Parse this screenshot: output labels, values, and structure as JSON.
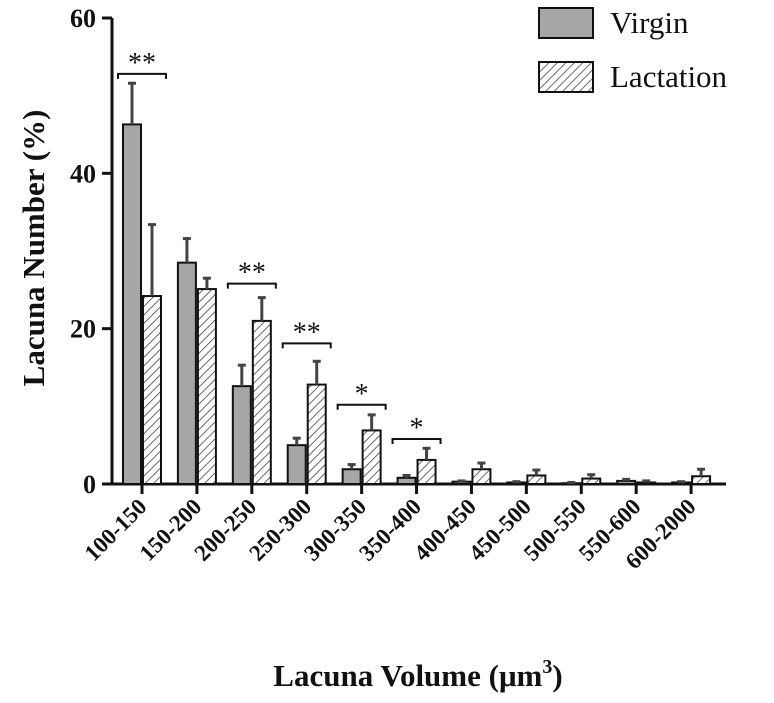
{
  "chart_data": {
    "type": "bar",
    "ylabel": "Lacuna Number (%)",
    "xlabel": "Lacuna Volume (μm",
    "xlabel_superscript": "3",
    "xlabel_close": ")",
    "ylim": [
      0,
      60
    ],
    "yticks": [
      "0",
      "20",
      "40",
      "60"
    ],
    "categories": [
      "100-150",
      "150-200",
      "200-250",
      "250-300",
      "300-350",
      "350-400",
      "400-450",
      "450-500",
      "500-550",
      "550-600",
      "600-2000"
    ],
    "series": [
      {
        "name": "Virgin",
        "pattern": "solid",
        "color": "#a6a6a6",
        "values": [
          46.3,
          28.5,
          12.6,
          5.0,
          1.9,
          0.8,
          0.3,
          0.2,
          0.1,
          0.4,
          0.2
        ],
        "errors": [
          5.3,
          3.1,
          2.7,
          0.9,
          0.6,
          0.3,
          0.1,
          0.1,
          0.1,
          0.2,
          0.1
        ]
      },
      {
        "name": "Lactation",
        "pattern": "hatched",
        "color": "#ffffff",
        "values": [
          24.2,
          25.1,
          21.0,
          12.8,
          6.9,
          3.1,
          1.9,
          1.1,
          0.7,
          0.2,
          1.0
        ],
        "errors": [
          9.2,
          1.4,
          3.0,
          3.0,
          2.0,
          1.5,
          0.8,
          0.7,
          0.5,
          0.2,
          0.9
        ]
      }
    ],
    "significance": [
      {
        "category_index": 0,
        "label": "**",
        "y": 52.8
      },
      {
        "category_index": 2,
        "label": "**",
        "y": 25.8
      },
      {
        "category_index": 3,
        "label": "**",
        "y": 18.1
      },
      {
        "category_index": 4,
        "label": "*",
        "y": 10.2
      },
      {
        "category_index": 5,
        "label": "*",
        "y": 5.8
      }
    ],
    "legend_position": "top-right",
    "grid": false
  }
}
